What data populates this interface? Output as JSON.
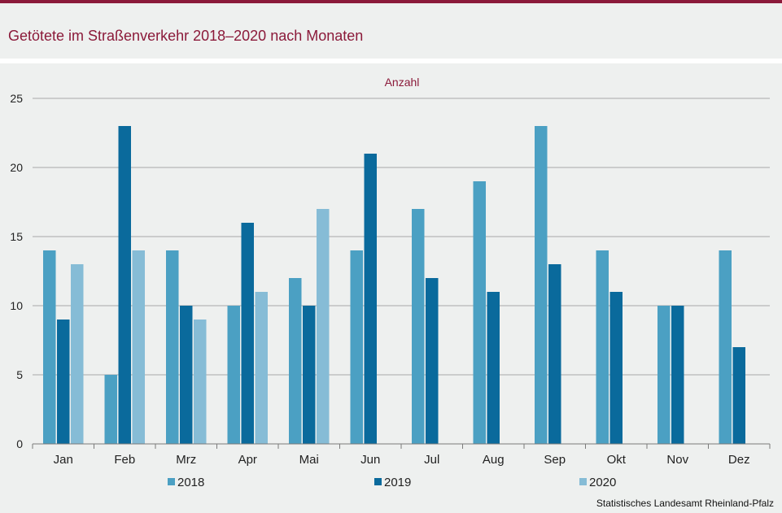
{
  "header": {
    "title": "Getötete im Straßenverkehr 2018–2020 nach Monaten"
  },
  "source": "Statistisches Landesamt Rheinland-Pfalz",
  "colors": {
    "accent": "#8b1a3a",
    "s2018": "#4ba0c3",
    "s2019": "#0a6a9c",
    "s2020": "#86bcd6"
  },
  "chart_data": {
    "type": "bar",
    "ylabel": "Anzahl",
    "ylim": [
      0,
      25
    ],
    "yticks": [
      0,
      5,
      10,
      15,
      20,
      25
    ],
    "grid": true,
    "legend": "bottom",
    "categories": [
      "Jan",
      "Feb",
      "Mrz",
      "Apr",
      "Mai",
      "Jun",
      "Jul",
      "Aug",
      "Sep",
      "Okt",
      "Nov",
      "Dez"
    ],
    "series": [
      {
        "name": "2018",
        "values": [
          14,
          5,
          14,
          10,
          12,
          14,
          17,
          19,
          23,
          14,
          10,
          14
        ]
      },
      {
        "name": "2019",
        "values": [
          9,
          23,
          10,
          16,
          10,
          21,
          12,
          11,
          13,
          11,
          10,
          7
        ]
      },
      {
        "name": "2020",
        "values": [
          13,
          14,
          9,
          11,
          17,
          null,
          null,
          null,
          null,
          null,
          null,
          null
        ]
      }
    ]
  }
}
